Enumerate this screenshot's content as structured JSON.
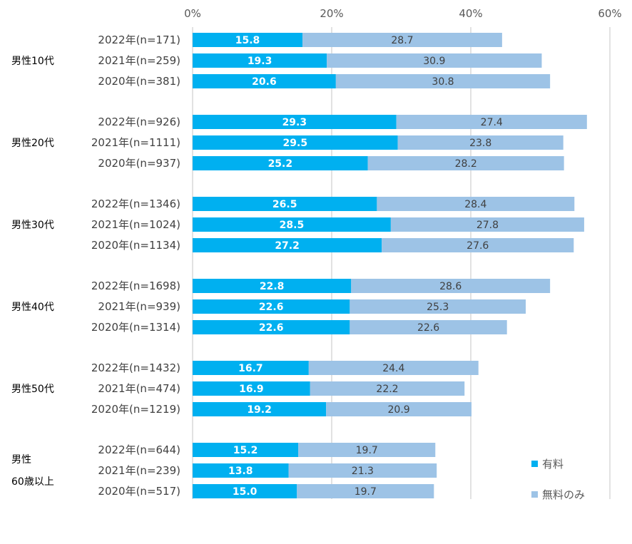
{
  "chart_data": {
    "type": "bar",
    "orientation": "horizontal",
    "stacked": true,
    "xlim": [
      0,
      60
    ],
    "x_ticks": [
      "0%",
      "20%",
      "40%",
      "60%"
    ],
    "grid": true,
    "legend_position": "bottom-right",
    "colors": {
      "paid": "#00B0F0",
      "free_only": "#9DC3E6",
      "grid": "#d9d9d9"
    },
    "series": [
      {
        "name": "有料"
      },
      {
        "name": "無料のみ"
      }
    ],
    "groups": [
      {
        "label_lines": [
          "男性10代"
        ],
        "rows": [
          {
            "label": "2022年(n=171)",
            "paid": 15.8,
            "free": 28.7
          },
          {
            "label": "2021年(n=259)",
            "paid": 19.3,
            "free": 30.9
          },
          {
            "label": "2020年(n=381)",
            "paid": 20.6,
            "free": 30.8
          }
        ]
      },
      {
        "label_lines": [
          "男性20代"
        ],
        "rows": [
          {
            "label": "2022年(n=926)",
            "paid": 29.3,
            "free": 27.4
          },
          {
            "label": "2021年(n=1111)",
            "paid": 29.5,
            "free": 23.8
          },
          {
            "label": "2020年(n=937)",
            "paid": 25.2,
            "free": 28.2
          }
        ]
      },
      {
        "label_lines": [
          "男性30代"
        ],
        "rows": [
          {
            "label": "2022年(n=1346)",
            "paid": 26.5,
            "free": 28.4
          },
          {
            "label": "2021年(n=1024)",
            "paid": 28.5,
            "free": 27.8
          },
          {
            "label": "2020年(n=1134)",
            "paid": 27.2,
            "free": 27.6
          }
        ]
      },
      {
        "label_lines": [
          "男性40代"
        ],
        "rows": [
          {
            "label": "2022年(n=1698)",
            "paid": 22.8,
            "free": 28.6
          },
          {
            "label": "2021年(n=939)",
            "paid": 22.6,
            "free": 25.3
          },
          {
            "label": "2020年(n=1314)",
            "paid": 22.6,
            "free": 22.6
          }
        ]
      },
      {
        "label_lines": [
          "男性50代"
        ],
        "rows": [
          {
            "label": "2022年(n=1432)",
            "paid": 16.7,
            "free": 24.4
          },
          {
            "label": "2021年(n=474)",
            "paid": 16.9,
            "free": 22.2
          },
          {
            "label": "2020年(n=1219)",
            "paid": 19.2,
            "free": 20.9
          }
        ]
      },
      {
        "label_lines": [
          "男性",
          "60歳以上"
        ],
        "rows": [
          {
            "label": "2022年(n=644)",
            "paid": 15.2,
            "free": 19.7
          },
          {
            "label": "2021年(n=239)",
            "paid": 13.8,
            "free": 21.3
          },
          {
            "label": "2020年(n=517)",
            "paid": 15.0,
            "free": 19.7
          }
        ]
      }
    ]
  }
}
